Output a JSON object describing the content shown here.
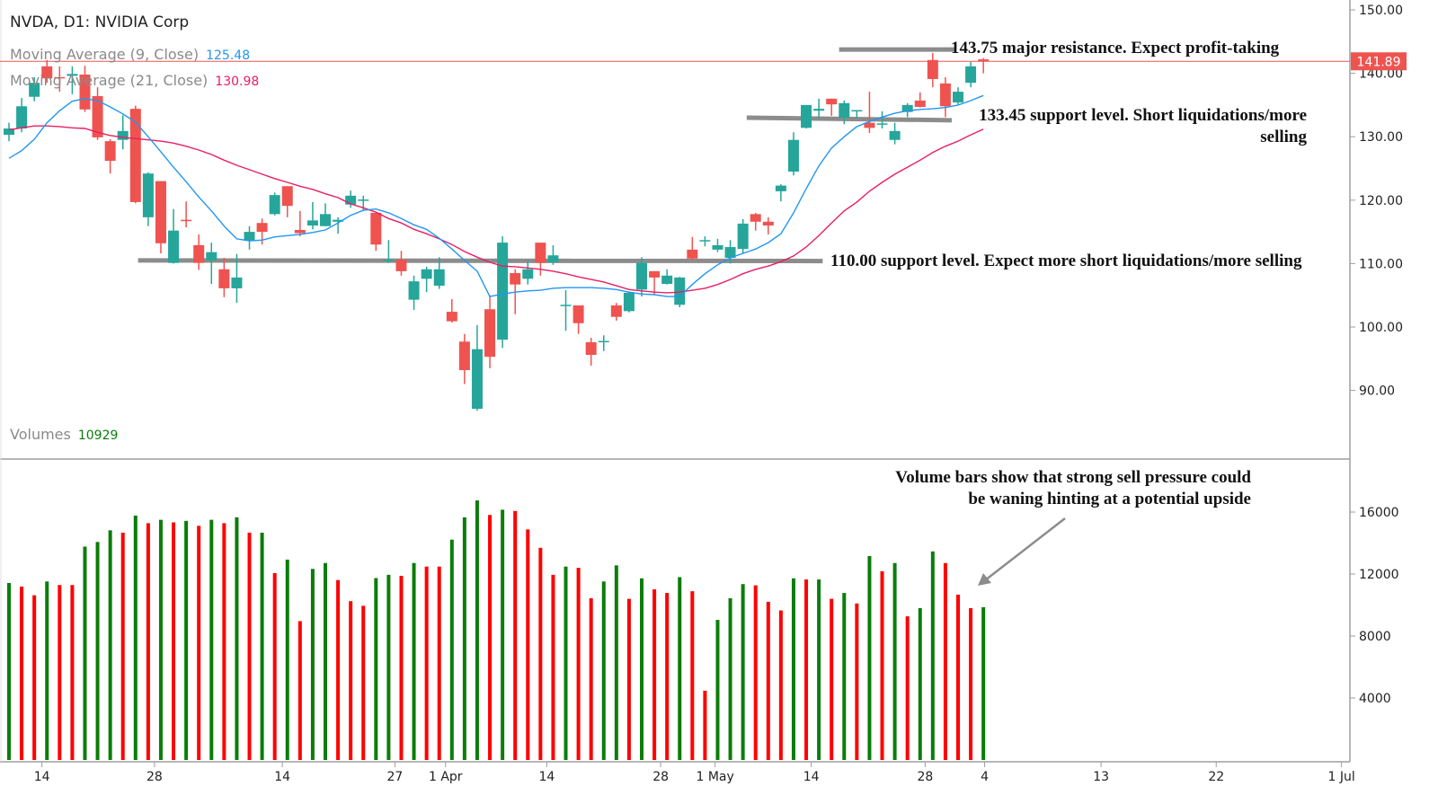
{
  "header": {
    "title": "NVDA, D1: NVIDIA Corp",
    "ma9_label": "Moving Average (9, Close)",
    "ma9_value": "125.48",
    "ma21_label": "Moving Average (21, Close)",
    "ma21_value": "130.98",
    "volumes_label": "Volumes",
    "volumes_value": "10929"
  },
  "colors": {
    "up_candle": "#26a69a",
    "down_candle": "#ef5350",
    "volume_up": "#0a7d0a",
    "volume_down": "#ff0000",
    "ma9": "#2196f3",
    "ma21": "#e91e63",
    "price_line": "#ef5350",
    "level_line": "#8c8c8c"
  },
  "annotations": {
    "resistance": "143.75 major resistance. Expect profit-taking",
    "support_133_line1": "133.45 support level. Short liquidations/more",
    "support_133_line2": "selling",
    "support_110": "110.00 support level. Expect more short liquidations/more selling",
    "volume_line1": "Volume bars show that strong sell pressure could",
    "volume_line2": "be waning hinting at a potential upside"
  },
  "chart_data": {
    "type": "candlestick",
    "price_axis": {
      "ylim": [
        80,
        150
      ],
      "ticks": [
        "150.00",
        "140.00",
        "130.00",
        "120.00",
        "110.00",
        "100.00",
        "90.00"
      ],
      "tick_values": [
        150,
        140,
        130,
        120,
        110,
        100,
        90
      ]
    },
    "volume_axis": {
      "ylim": [
        0,
        18000
      ],
      "ticks": [
        "16000",
        "12000",
        "8000",
        "4000"
      ],
      "tick_values": [
        16000,
        12000,
        8000,
        4000
      ]
    },
    "x_ticks": [
      {
        "label": "14",
        "bar": 2.6
      },
      {
        "label": "28",
        "bar": 11.5
      },
      {
        "label": "14",
        "bar": 21.6
      },
      {
        "label": "27",
        "bar": 30.5
      },
      {
        "label": "1 Apr",
        "bar": 34.5
      },
      {
        "label": "14",
        "bar": 42.5
      },
      {
        "label": "28",
        "bar": 51.5
      },
      {
        "label": "1 May",
        "bar": 55.8
      },
      {
        "label": "14",
        "bar": 63.4
      },
      {
        "label": "28",
        "bar": 72.4
      },
      {
        "label": "4",
        "bar": 77.1
      },
      {
        "label": "13",
        "bar": 86.3
      },
      {
        "label": "22",
        "bar": 95.4
      },
      {
        "label": "1 Jul",
        "bar": 105.3
      }
    ],
    "x_range_bars": [
      0,
      106
    ],
    "current_price": {
      "value": 141.89,
      "label": "141.89"
    },
    "ohlc": [
      [
        130.3,
        132.2,
        129.3,
        131.3
      ],
      [
        131.3,
        136.1,
        130.7,
        134.8
      ],
      [
        136.3,
        139.4,
        135.6,
        138.5
      ],
      [
        141.1,
        142.1,
        138.5,
        139.2
      ],
      [
        139.4,
        141.1,
        137.1,
        139.2
      ],
      [
        139.6,
        141.1,
        136.7,
        139.9
      ],
      [
        139.8,
        141.2,
        133.9,
        134.3
      ],
      [
        136.4,
        137.8,
        129.5,
        129.9
      ],
      [
        129.3,
        129.6,
        124.2,
        126.2
      ],
      [
        129.5,
        133.4,
        128.0,
        130.9
      ],
      [
        134.4,
        134.9,
        119.5,
        119.7
      ],
      [
        117.3,
        124.4,
        115.9,
        124.2
      ],
      [
        123.0,
        123.0,
        111.6,
        113.2
      ],
      [
        110.1,
        118.6,
        110.0,
        115.2
      ],
      [
        116.9,
        119.8,
        115.7,
        116.7
      ],
      [
        112.9,
        114.6,
        109.0,
        110.1
      ],
      [
        110.5,
        113.3,
        106.8,
        111.8
      ],
      [
        109.1,
        110.9,
        104.7,
        106.1
      ],
      [
        106.1,
        111.5,
        103.8,
        107.8
      ],
      [
        113.6,
        115.9,
        112.2,
        115.0
      ],
      [
        116.4,
        117.1,
        113.0,
        115.0
      ],
      [
        117.8,
        121.2,
        117.6,
        120.8
      ],
      [
        122.2,
        122.2,
        117.3,
        119.1
      ],
      [
        115.3,
        118.3,
        114.3,
        114.8
      ],
      [
        116.0,
        119.7,
        115.4,
        116.8
      ],
      [
        115.9,
        119.5,
        115.9,
        117.8
      ],
      [
        116.6,
        117.3,
        114.7,
        116.9
      ],
      [
        119.3,
        121.5,
        118.8,
        120.7
      ],
      [
        119.9,
        120.7,
        118.3,
        120.1
      ],
      [
        118.0,
        118.0,
        112.0,
        113.0
      ],
      [
        110.4,
        113.7,
        110.1,
        110.6
      ],
      [
        110.6,
        112.0,
        108.1,
        108.8
      ],
      [
        104.3,
        108.1,
        102.7,
        107.2
      ],
      [
        107.6,
        109.5,
        105.5,
        109.1
      ],
      [
        106.5,
        111.0,
        106.0,
        109.1
      ],
      [
        102.4,
        104.4,
        100.7,
        100.9
      ],
      [
        97.7,
        98.9,
        91.0,
        93.2
      ],
      [
        87.1,
        100.3,
        86.8,
        96.5
      ],
      [
        102.8,
        105.0,
        93.5,
        95.3
      ],
      [
        98.0,
        114.3,
        96.7,
        113.3
      ],
      [
        108.5,
        109.1,
        102.0,
        106.7
      ],
      [
        107.6,
        110.5,
        106.7,
        109.1
      ],
      [
        113.3,
        113.3,
        108.1,
        110.1
      ],
      [
        110.2,
        112.9,
        109.8,
        111.3
      ],
      [
        103.3,
        105.8,
        99.4,
        103.5
      ],
      [
        103.4,
        103.4,
        98.9,
        100.6
      ],
      [
        97.6,
        98.3,
        93.9,
        95.6
      ],
      [
        97.6,
        98.7,
        96.2,
        97.8
      ],
      [
        103.4,
        103.8,
        101.0,
        101.6
      ],
      [
        102.5,
        105.5,
        102.3,
        105.4
      ],
      [
        105.9,
        111.0,
        104.8,
        110.1
      ],
      [
        108.8,
        108.8,
        105.2,
        107.8
      ],
      [
        106.8,
        109.1,
        106.7,
        108.1
      ],
      [
        103.5,
        107.9,
        103.1,
        107.8
      ],
      [
        112.2,
        114.2,
        110.6,
        110.8
      ],
      [
        113.5,
        114.3,
        112.7,
        113.7
      ],
      [
        112.2,
        113.9,
        111.8,
        112.9
      ],
      [
        110.9,
        113.7,
        110.0,
        112.6
      ],
      [
        112.3,
        117.0,
        111.6,
        116.3
      ],
      [
        117.8,
        118.0,
        115.2,
        116.6
      ],
      [
        116.6,
        117.3,
        114.6,
        116.0
      ],
      [
        121.4,
        122.5,
        119.8,
        122.3
      ],
      [
        124.5,
        130.7,
        123.9,
        129.5
      ],
      [
        131.4,
        135.0,
        131.3,
        135.0
      ],
      [
        134.1,
        136.0,
        132.9,
        134.4
      ],
      [
        136.0,
        136.0,
        133.3,
        135.1
      ],
      [
        133.0,
        135.7,
        132.0,
        135.3
      ],
      [
        134.1,
        134.2,
        132.9,
        134.2
      ],
      [
        132.2,
        137.1,
        130.6,
        131.4
      ],
      [
        131.9,
        134.0,
        131.3,
        132.1
      ],
      [
        129.5,
        132.2,
        128.8,
        130.9
      ],
      [
        133.9,
        135.3,
        133.1,
        135.0
      ],
      [
        135.7,
        137.0,
        134.6,
        134.7
      ],
      [
        142.1,
        143.2,
        137.8,
        139.1
      ],
      [
        138.4,
        139.4,
        133.1,
        134.8
      ],
      [
        135.4,
        137.8,
        135.1,
        137.1
      ],
      [
        138.5,
        141.8,
        137.8,
        141.1
      ],
      [
        142.2,
        142.4,
        140.0,
        141.89
      ]
    ],
    "ma9": [
      126.6,
      127.8,
      129.6,
      132.2,
      134.1,
      135.6,
      136.0,
      135.7,
      134.7,
      133.6,
      132.3,
      130.0,
      127.6,
      125.2,
      122.9,
      120.5,
      118.3,
      115.9,
      113.9,
      113.6,
      113.7,
      114.2,
      114.4,
      114.6,
      114.9,
      115.3,
      116.4,
      117.6,
      118.4,
      118.6,
      118.0,
      117.1,
      116.1,
      115.4,
      114.0,
      112.3,
      110.5,
      108.8,
      104.8,
      105.2,
      105.5,
      105.7,
      105.8,
      106.1,
      106.2,
      106.2,
      106.2,
      106.1,
      105.9,
      105.5,
      105.2,
      105.1,
      104.8,
      104.8,
      106.7,
      108.4,
      109.8,
      110.9,
      111.6,
      112.3,
      113.3,
      114.7,
      118.0,
      121.8,
      125.4,
      128.2,
      130.0,
      131.6,
      132.4,
      133.1,
      133.7,
      134.1,
      134.3,
      134.4,
      134.6,
      135.0,
      135.7,
      136.5
    ],
    "ma21": [
      131.1,
      131.4,
      131.7,
      131.7,
      131.6,
      131.4,
      131.3,
      130.7,
      130.2,
      129.9,
      129.7,
      129.5,
      129.3,
      129.0,
      128.5,
      127.9,
      127.2,
      126.3,
      125.5,
      124.8,
      124.1,
      123.4,
      122.8,
      122.2,
      121.7,
      121.0,
      120.4,
      119.4,
      118.8,
      118.1,
      117.1,
      116.4,
      115.4,
      114.7,
      113.9,
      113.0,
      111.9,
      111.0,
      110.2,
      109.6,
      109.5,
      109.3,
      109.1,
      108.8,
      108.4,
      107.9,
      107.5,
      107.1,
      106.5,
      105.9,
      105.7,
      105.5,
      105.4,
      105.5,
      105.8,
      106.1,
      106.7,
      107.5,
      108.4,
      109.1,
      109.6,
      110.3,
      111.2,
      112.6,
      114.4,
      116.4,
      118.3,
      119.7,
      121.4,
      122.8,
      124.1,
      125.2,
      126.3,
      127.5,
      128.5,
      129.3,
      130.3,
      131.2
    ],
    "volume": [
      11420,
      11190,
      10630,
      11520,
      11290,
      11290,
      13770,
      14070,
      14820,
      14670,
      15770,
      15280,
      15500,
      15330,
      15430,
      15110,
      15500,
      15280,
      15660,
      14670,
      14670,
      12060,
      12930,
      8960,
      12330,
      12710,
      11610,
      10250,
      9950,
      11740,
      11950,
      11880,
      12710,
      12480,
      12480,
      14220,
      15660,
      16750,
      15810,
      16150,
      16070,
      14880,
      13690,
      11950,
      12480,
      12400,
      10440,
      11520,
      12560,
      10400,
      11720,
      11010,
      10780,
      11800,
      10890,
      4470,
      9040,
      10440,
      11350,
      11270,
      10210,
      9650,
      11720,
      11650,
      11650,
      10400,
      10780,
      10100,
      13160,
      12180,
      12710,
      9270,
      9800,
      13460,
      12710,
      10670,
      9800,
      9860
    ],
    "volume_up": [
      1,
      0,
      0,
      1,
      0,
      0,
      1,
      1,
      1,
      0,
      1,
      0,
      1,
      0,
      1,
      0,
      1,
      0,
      1,
      0,
      1,
      0,
      1,
      0,
      1,
      1,
      0,
      0,
      0,
      1,
      1,
      0,
      1,
      0,
      0,
      1,
      1,
      1,
      0,
      1,
      0,
      0,
      0,
      0,
      1,
      0,
      0,
      1,
      1,
      0,
      1,
      0,
      0,
      1,
      0,
      0,
      1,
      1,
      1,
      0,
      0,
      0,
      1,
      0,
      1,
      0,
      1,
      0,
      1,
      0,
      1,
      0,
      1,
      1,
      0,
      0,
      0,
      1
    ],
    "levels": [
      {
        "value": 143.75,
        "from_bar": 65.6,
        "to_bar": 74.7,
        "end_value": 143.75
      },
      {
        "value": 133.0,
        "from_bar": 58.3,
        "to_bar": 74.5,
        "end_value": 132.6
      },
      {
        "value": 110.5,
        "from_bar": 10.2,
        "to_bar": 64.3,
        "end_value": 110.4
      }
    ]
  }
}
